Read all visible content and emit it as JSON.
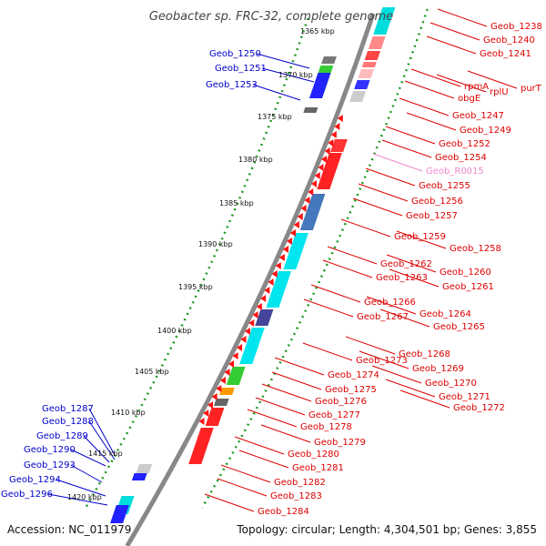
{
  "title": "Geobacter sp. FRC-32, complete genome",
  "accession": "Accession: NC_011979",
  "summary": "Topology: circular; Length: 4,304,501 bp; Genes: 3,855",
  "kbp_ticks": [
    "1365 kbp",
    "1370 kbp",
    "1375 kbp",
    "1380 kbp",
    "1385 kbp",
    "1390 kbp",
    "1395 kbp",
    "1400 kbp",
    "1405 kbp",
    "1410 kbp",
    "1415 kbp",
    "1420 kbp"
  ],
  "colors": {
    "left_label": "#0000cc",
    "right_label": "#dd0000",
    "rna_label": "#ee88cc",
    "backbone": "#888888",
    "dotted_track": "#229922"
  },
  "left_genes": [
    "Geob_1250",
    "Geob_1251",
    "Geob_1253",
    "Geob_1287",
    "Geob_1288",
    "Geob_1289",
    "Geob_1290",
    "Geob_1293",
    "Geob_1294",
    "Geob_1296"
  ],
  "right_genes": [
    "Geob_1238",
    "Geob_1240",
    "Geob_1241",
    "purT",
    "rplU",
    "rpmA",
    "obgE",
    "Geob_1247",
    "Geob_1249",
    "Geob_1252",
    "Geob_1254",
    "Geob_R0015",
    "Geob_1255",
    "Geob_1256",
    "Geob_1257",
    "Geob_1259",
    "Geob_1258",
    "Geob_1262",
    "Geob_1260",
    "Geob_1263",
    "Geob_1261",
    "Geob_1266",
    "Geob_1264",
    "Geob_1267",
    "Geob_1265",
    "Geob_1268",
    "Geob_1273",
    "Geob_1269",
    "Geob_1274",
    "Geob_1270",
    "Geob_1275",
    "Geob_1271",
    "Geob_1276",
    "Geob_1272",
    "Geob_1277",
    "Geob_1278",
    "Geob_1279",
    "Geob_1280",
    "Geob_1281",
    "Geob_1282",
    "Geob_1283",
    "Geob_1284"
  ]
}
